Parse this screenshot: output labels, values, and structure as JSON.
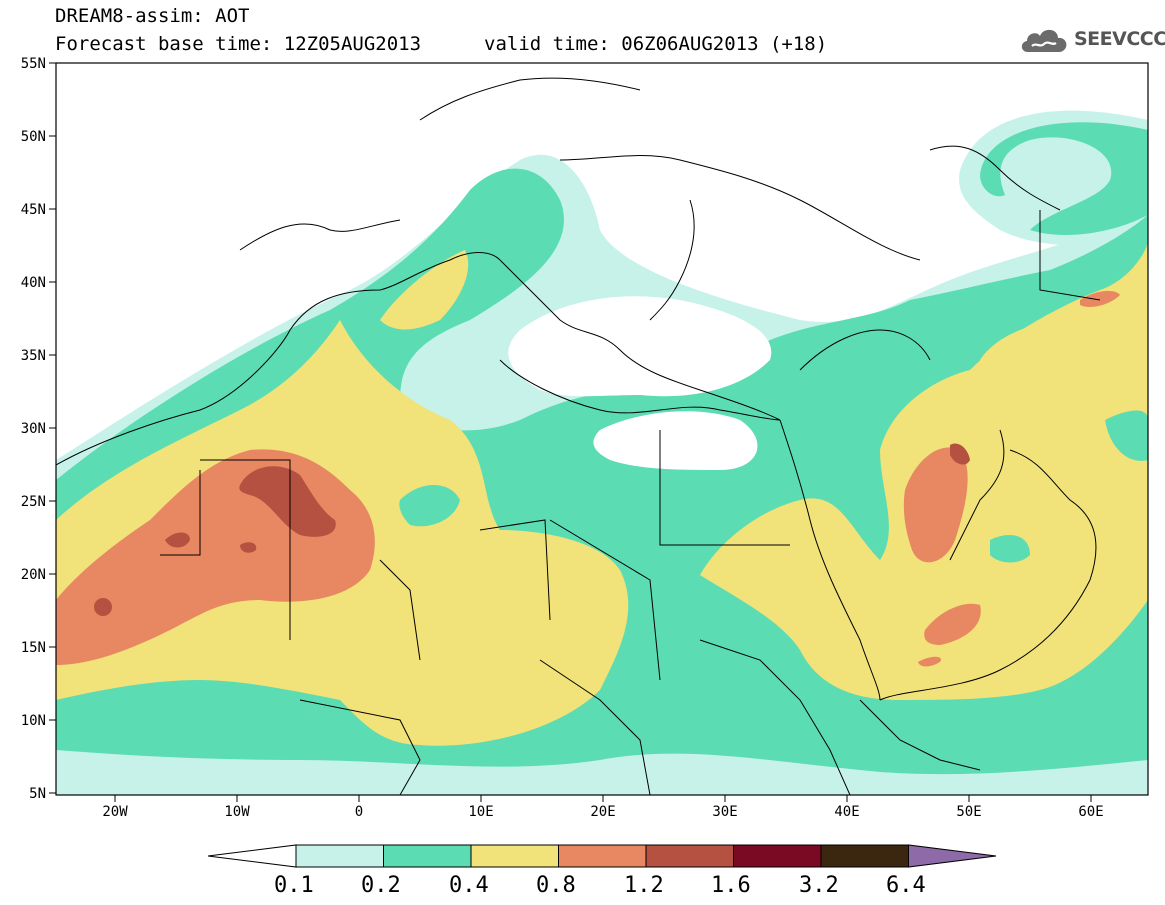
{
  "header": {
    "title": "DREAM8-assim: AOT",
    "base_time": "Forecast base time: 12Z05AUG2013",
    "valid_time": "valid time: 06Z06AUG2013 (+18)"
  },
  "logo": {
    "text": "SEEVCCC",
    "icon": "cloud-icon"
  },
  "axes": {
    "lon_labels": [
      "20W",
      "10W",
      "0",
      "10E",
      "20E",
      "30E",
      "40E",
      "50E",
      "60E"
    ],
    "lat_labels": [
      "55N",
      "50N",
      "45N",
      "40N",
      "35N",
      "30N",
      "25N",
      "20N",
      "15N",
      "10N",
      "5N"
    ]
  },
  "colorbar": {
    "labels": [
      "0.1",
      "0.2",
      "0.4",
      "0.8",
      "1.2",
      "1.6",
      "3.2",
      "6.4"
    ],
    "colors": [
      "#c6f2ea",
      "#5cdcb2",
      "#f2e27a",
      "#e88862",
      "#b55140",
      "#7a0a24",
      "#3b2610",
      "#8e6ba8"
    ]
  },
  "palette": {
    "ocean": "#ffffff",
    "level1": "#c6f2ea",
    "level2": "#5cdcb2",
    "level3": "#f2e27a",
    "level4": "#e88862",
    "level5": "#b55140"
  }
}
